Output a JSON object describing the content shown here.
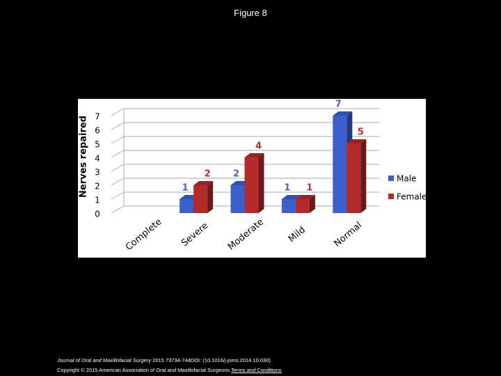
{
  "header": {
    "title": "Figure 8"
  },
  "chart_data": {
    "type": "bar3d",
    "y_label": "Nerves repaired",
    "categories": [
      "Complete",
      "Severe",
      "Moderate",
      "Mild",
      "Normal"
    ],
    "series": [
      {
        "name": "Male",
        "color": "#3a5fcd",
        "label_color": "#4a5fc0",
        "values": [
          null,
          1,
          2,
          1,
          7
        ]
      },
      {
        "name": "Female",
        "color": "#b22a2a",
        "label_color": "#c02a2a",
        "values": [
          null,
          2,
          4,
          1,
          5
        ]
      }
    ],
    "ylim": [
      0,
      7
    ],
    "yticks": [
      0,
      1,
      2,
      3,
      4,
      5,
      6,
      7
    ],
    "grid": true,
    "legend": "right"
  },
  "footer": {
    "journal": "Journal of Oral and Maxillofacial Surgery",
    "citation": "2015 73734-744DOI: (10.1016/j.joms.2014.10.030)",
    "copyright": "Copyright © 2015 American Association of Oral and Maxillofacial Surgeons",
    "link": "Terms and Conditions"
  }
}
